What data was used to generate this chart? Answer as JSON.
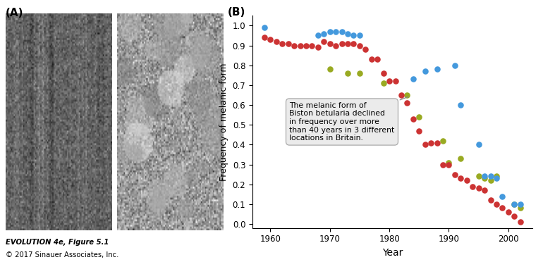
{
  "title_A": "(A)",
  "title_B": "(B)",
  "xlabel": "Year",
  "ylabel": "Frequency of melanic form",
  "xlim": [
    1957,
    2004
  ],
  "ylim": [
    -0.02,
    1.05
  ],
  "xticks": [
    1960,
    1970,
    1980,
    1990,
    2000
  ],
  "yticks": [
    0,
    0.1,
    0.2,
    0.3,
    0.4,
    0.5,
    0.6,
    0.7,
    0.8,
    0.9,
    1.0
  ],
  "blue_x": [
    1959,
    1968,
    1969,
    1970,
    1971,
    1972,
    1973,
    1974,
    1975,
    1984,
    1986,
    1988,
    1991,
    1992,
    1995,
    1996,
    1997,
    1998,
    1999,
    2001,
    2002
  ],
  "blue_y": [
    0.99,
    0.95,
    0.96,
    0.97,
    0.97,
    0.97,
    0.96,
    0.95,
    0.95,
    0.73,
    0.77,
    0.78,
    0.8,
    0.6,
    0.4,
    0.24,
    0.24,
    0.23,
    0.14,
    0.1,
    0.1
  ],
  "red_x": [
    1959,
    1960,
    1961,
    1962,
    1963,
    1964,
    1965,
    1966,
    1967,
    1968,
    1969,
    1970,
    1971,
    1972,
    1973,
    1974,
    1975,
    1976,
    1977,
    1978,
    1979,
    1980,
    1981,
    1982,
    1983,
    1984,
    1985,
    1986,
    1987,
    1988,
    1989,
    1990,
    1991,
    1992,
    1993,
    1994,
    1995,
    1996,
    1997,
    1998,
    1999,
    2000,
    2001,
    2002
  ],
  "red_y": [
    0.94,
    0.93,
    0.92,
    0.91,
    0.91,
    0.9,
    0.9,
    0.9,
    0.9,
    0.89,
    0.92,
    0.91,
    0.9,
    0.91,
    0.91,
    0.91,
    0.9,
    0.88,
    0.83,
    0.83,
    0.76,
    0.72,
    0.72,
    0.65,
    0.61,
    0.53,
    0.47,
    0.4,
    0.41,
    0.41,
    0.3,
    0.3,
    0.25,
    0.23,
    0.22,
    0.19,
    0.18,
    0.17,
    0.12,
    0.1,
    0.08,
    0.06,
    0.04,
    0.01
  ],
  "green_x": [
    1970,
    1973,
    1975,
    1979,
    1983,
    1985,
    1989,
    1990,
    1992,
    1995,
    1996,
    1997,
    1998,
    2001,
    2002
  ],
  "green_y": [
    0.78,
    0.76,
    0.76,
    0.71,
    0.65,
    0.54,
    0.42,
    0.31,
    0.33,
    0.24,
    0.23,
    0.22,
    0.24,
    0.1,
    0.08
  ],
  "blue_color": "#4499DD",
  "red_color": "#CC3333",
  "green_color": "#99AA22",
  "dot_size": 38,
  "caption_line1": "EVOLUTION 4e, Figure 5.1",
  "caption_line2": "© 2017 Sinauer Associates, Inc.",
  "bg_color": "#ffffff",
  "photo1_colors_mean": 0.38,
  "photo2_colors_mean": 0.62
}
